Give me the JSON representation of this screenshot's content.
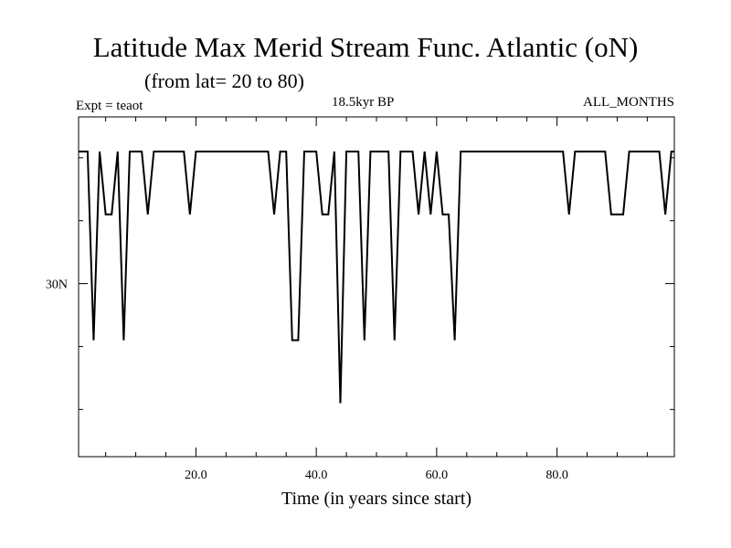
{
  "chart_data": {
    "type": "line",
    "title": "Latitude Max Merid Stream Func. Atlantic (oN)",
    "subtitle": "(from lat= 20 to 80)",
    "annotations": {
      "left": "Expt = teaot",
      "center": "18.5kyr BP",
      "right": "ALL_MONTHS"
    },
    "xlabel": "Time (in years since start)",
    "ylabel": "",
    "xlim": [
      0.5,
      99.5
    ],
    "ylim": [
      16.25,
      43.25
    ],
    "x_ticks": [
      20,
      40,
      60,
      80
    ],
    "x_tick_labels": [
      "20.0",
      "40.0",
      "60.0",
      "80.0"
    ],
    "y_ticks": [
      30
    ],
    "y_tick_labels": [
      "30N"
    ],
    "grid": false,
    "series": [
      {
        "color": "#000000",
        "x": [
          0.5,
          1,
          2,
          3,
          4,
          5,
          6,
          7,
          8,
          9,
          10,
          11,
          12,
          13,
          14,
          15,
          16,
          17,
          18,
          19,
          20,
          21,
          22,
          23,
          24,
          25,
          26,
          27,
          28,
          29,
          30,
          31,
          32,
          33,
          34,
          35,
          36,
          37,
          38,
          39,
          40,
          41,
          42,
          43,
          44,
          45,
          46,
          47,
          48,
          49,
          50,
          51,
          52,
          53,
          54,
          55,
          56,
          57,
          58,
          59,
          60,
          61,
          62,
          63,
          64,
          65,
          66,
          67,
          68,
          69,
          70,
          71,
          72,
          73,
          74,
          75,
          76,
          77,
          78,
          79,
          80,
          81,
          82,
          83,
          84,
          85,
          86,
          87,
          88,
          89,
          90,
          91,
          92,
          93,
          94,
          95,
          96,
          97,
          98,
          99,
          99.5
        ],
        "y": [
          40.5,
          40.5,
          40.5,
          25.5,
          40.5,
          35.5,
          35.5,
          40.5,
          25.5,
          40.5,
          40.5,
          40.5,
          35.5,
          40.5,
          40.5,
          40.5,
          40.5,
          40.5,
          40.5,
          35.5,
          40.5,
          40.5,
          40.5,
          40.5,
          40.5,
          40.5,
          40.5,
          40.5,
          40.5,
          40.5,
          40.5,
          40.5,
          40.5,
          35.5,
          40.5,
          40.5,
          25.5,
          25.5,
          40.5,
          40.5,
          40.5,
          35.5,
          35.5,
          40.5,
          20.5,
          40.5,
          40.5,
          40.5,
          25.5,
          40.5,
          40.5,
          40.5,
          40.5,
          25.5,
          40.5,
          40.5,
          40.5,
          35.5,
          40.5,
          35.5,
          40.5,
          35.5,
          35.5,
          25.5,
          40.5,
          40.5,
          40.5,
          40.5,
          40.5,
          40.5,
          40.5,
          40.5,
          40.5,
          40.5,
          40.5,
          40.5,
          40.5,
          40.5,
          40.5,
          40.5,
          40.5,
          40.5,
          35.5,
          40.5,
          40.5,
          40.5,
          40.5,
          40.5,
          40.5,
          35.5,
          35.5,
          35.5,
          40.5,
          40.5,
          40.5,
          40.5,
          40.5,
          40.5,
          35.5,
          40.5,
          40.5
        ]
      }
    ]
  }
}
